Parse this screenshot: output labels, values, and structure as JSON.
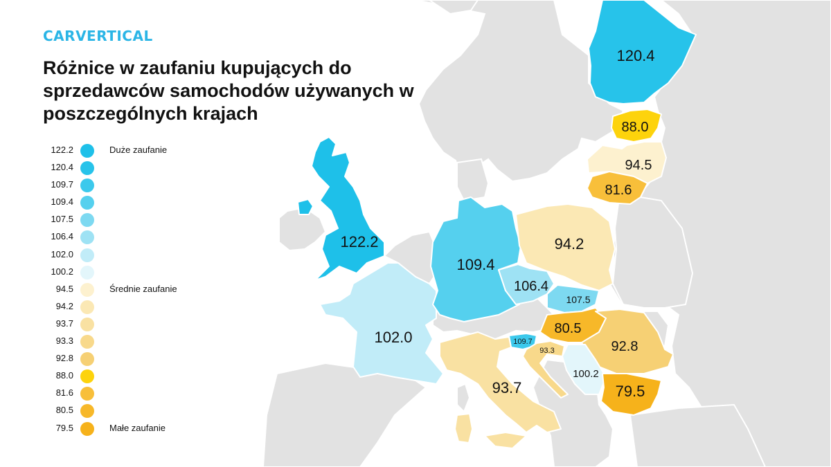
{
  "logo": {
    "part1": "CAR",
    "part2": "VERTICAL"
  },
  "title": "Różnice w zaufaniu kupujących do sprzedawców samochodów używanych w poszczególnych krajach",
  "colors": {
    "background_land": "#e2e2e2",
    "border": "#ffffff",
    "logo_text": "#2bb5e6",
    "logo_accent": "#f6c400"
  },
  "legend": [
    {
      "value": "122.2",
      "color": "#1ec0e9",
      "text": "Duże zaufanie"
    },
    {
      "value": "120.4",
      "color": "#27c3ea",
      "text": ""
    },
    {
      "value": "109.7",
      "color": "#3cc9ec",
      "text": ""
    },
    {
      "value": "109.4",
      "color": "#55d0ee",
      "text": ""
    },
    {
      "value": "107.5",
      "color": "#7dd9f1",
      "text": ""
    },
    {
      "value": "106.4",
      "color": "#9ee2f4",
      "text": ""
    },
    {
      "value": "102.0",
      "color": "#c1ecf8",
      "text": ""
    },
    {
      "value": "100.2",
      "color": "#e3f6fb",
      "text": ""
    },
    {
      "value": "94.5",
      "color": "#fdf1cf",
      "text": "Średnie zaufanie"
    },
    {
      "value": "94.2",
      "color": "#fbe8b4",
      "text": ""
    },
    {
      "value": "93.7",
      "color": "#f9e1a2",
      "text": ""
    },
    {
      "value": "93.3",
      "color": "#f8d98b",
      "text": ""
    },
    {
      "value": "92.8",
      "color": "#f6d074",
      "text": ""
    },
    {
      "value": "88.0",
      "color": "#fdd30c",
      "text": ""
    },
    {
      "value": "81.6",
      "color": "#f8bf3a",
      "text": ""
    },
    {
      "value": "80.5",
      "color": "#f7b829",
      "text": ""
    },
    {
      "value": "79.5",
      "color": "#f6b21b",
      "text": "Małe zaufanie"
    }
  ],
  "countries": [
    {
      "id": "uk",
      "value": "122.2",
      "color": "#1ec0e9"
    },
    {
      "id": "finland",
      "value": "120.4",
      "color": "#27c3ea"
    },
    {
      "id": "slovenia",
      "value": "109.7",
      "color": "#3cc9ec"
    },
    {
      "id": "germany",
      "value": "109.4",
      "color": "#55d0ee"
    },
    {
      "id": "slovakia",
      "value": "107.5",
      "color": "#7dd9f1"
    },
    {
      "id": "czechia",
      "value": "106.4",
      "color": "#9ee2f4"
    },
    {
      "id": "france",
      "value": "102.0",
      "color": "#c1ecf8"
    },
    {
      "id": "serbia",
      "value": "100.2",
      "color": "#e3f6fb"
    },
    {
      "id": "latvia",
      "value": "94.5",
      "color": "#fdf1cf"
    },
    {
      "id": "poland",
      "value": "94.2",
      "color": "#fbe8b4"
    },
    {
      "id": "italy",
      "value": "93.7",
      "color": "#f9e1a2"
    },
    {
      "id": "croatia",
      "value": "93.3",
      "color": "#f8d98b"
    },
    {
      "id": "romania",
      "value": "92.8",
      "color": "#f6d074"
    },
    {
      "id": "estonia",
      "value": "88.0",
      "color": "#fdd30c"
    },
    {
      "id": "lithuania",
      "value": "81.6",
      "color": "#f8bf3a"
    },
    {
      "id": "hungary",
      "value": "80.5",
      "color": "#f7b829"
    },
    {
      "id": "bulgaria",
      "value": "79.5",
      "color": "#f6b21b"
    }
  ]
}
